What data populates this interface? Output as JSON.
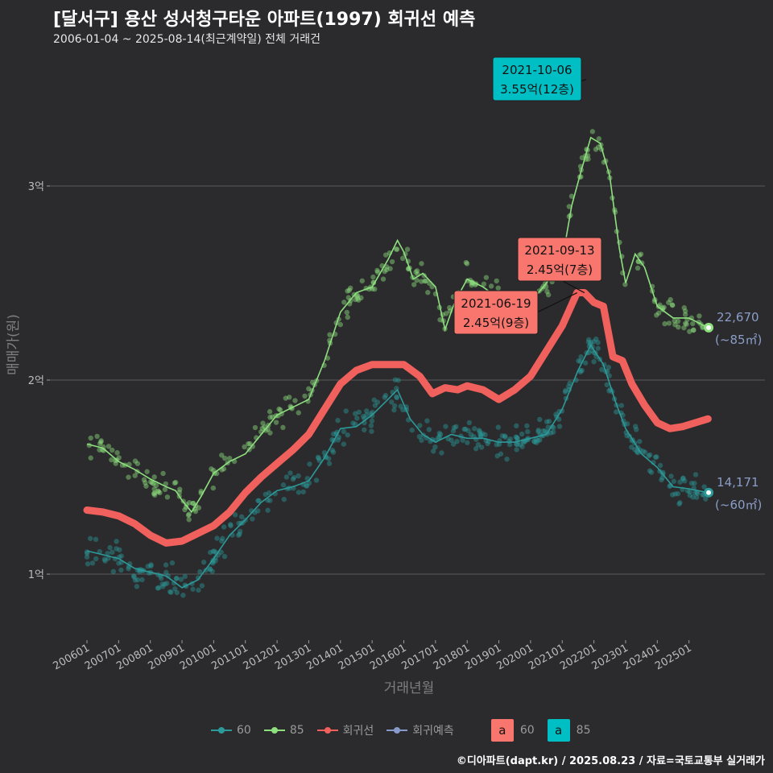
{
  "header": {
    "title": "[달서구] 용산 성서청구타운 아파트(1997) 회귀선 예측",
    "subtitle": "2006-01-04 ~ 2025-08-14(최근계약일) 전체 거래건"
  },
  "caption": "©디아파트(dapt.kr) / 2025.08.23 / 자료=국토교통부 실거래가",
  "colors": {
    "background": "#2b2a2c",
    "s60": "#2c9a9a",
    "s85": "#8ee07f",
    "regression": "#f0605c",
    "forecast": "#8899cc",
    "label60": "#f8766d",
    "label85": "#00bfc4",
    "end_label": "#8a9ec8"
  },
  "legend": {
    "items": [
      {
        "label": "60",
        "icon": "line-point-60-icon"
      },
      {
        "label": "85",
        "icon": "line-point-85-icon"
      },
      {
        "label": "회귀선",
        "icon": "line-point-regression-icon"
      },
      {
        "label": "회귀예측",
        "icon": "line-point-forecast-icon"
      }
    ],
    "label_boxes": [
      {
        "letter": "a",
        "label": "60"
      },
      {
        "letter": "a",
        "label": "85"
      }
    ]
  },
  "chart_data": {
    "type": "line",
    "xlabel": "거래년월",
    "ylabel": "매매가(원)",
    "x_ticks": [
      "200601",
      "200701",
      "200801",
      "200901",
      "201001",
      "201101",
      "201201",
      "201301",
      "201401",
      "201501",
      "201601",
      "201701",
      "201801",
      "201901",
      "202001",
      "202101",
      "202201",
      "202301",
      "202401",
      "202501"
    ],
    "y_ticks": [
      {
        "value": 1,
        "label": "1억"
      },
      {
        "value": 2,
        "label": "2억"
      },
      {
        "value": 3,
        "label": "3억"
      }
    ],
    "xlim": [
      2005.7,
      2026.5
    ],
    "ylim": [
      0.7,
      3.8
    ],
    "grid": true,
    "series": [
      {
        "name": "85",
        "points": [
          [
            2006.0,
            1.67
          ],
          [
            2006.5,
            1.65
          ],
          [
            2007.0,
            1.58
          ],
          [
            2007.5,
            1.54
          ],
          [
            2008.0,
            1.49
          ],
          [
            2008.5,
            1.45
          ],
          [
            2008.8,
            1.43
          ],
          [
            2009.0,
            1.38
          ],
          [
            2009.3,
            1.32
          ],
          [
            2009.6,
            1.4
          ],
          [
            2010.0,
            1.52
          ],
          [
            2010.5,
            1.58
          ],
          [
            2011.0,
            1.62
          ],
          [
            2011.5,
            1.72
          ],
          [
            2012.0,
            1.82
          ],
          [
            2012.5,
            1.86
          ],
          [
            2013.0,
            1.9
          ],
          [
            2013.5,
            2.1
          ],
          [
            2014.0,
            2.35
          ],
          [
            2014.5,
            2.45
          ],
          [
            2015.0,
            2.48
          ],
          [
            2015.5,
            2.62
          ],
          [
            2015.8,
            2.72
          ],
          [
            2016.0,
            2.66
          ],
          [
            2016.3,
            2.52
          ],
          [
            2016.6,
            2.55
          ],
          [
            2017.0,
            2.48
          ],
          [
            2017.3,
            2.26
          ],
          [
            2017.6,
            2.4
          ],
          [
            2018.0,
            2.52
          ],
          [
            2018.5,
            2.48
          ],
          [
            2019.0,
            2.42
          ],
          [
            2019.5,
            2.38
          ],
          [
            2020.0,
            2.4
          ],
          [
            2020.5,
            2.5
          ],
          [
            2021.0,
            2.62
          ],
          [
            2021.3,
            2.9
          ],
          [
            2021.6,
            3.08
          ],
          [
            2021.9,
            3.25
          ],
          [
            2022.2,
            3.22
          ],
          [
            2022.5,
            3.05
          ],
          [
            2022.8,
            2.68
          ],
          [
            2023.0,
            2.5
          ],
          [
            2023.3,
            2.65
          ],
          [
            2023.6,
            2.58
          ],
          [
            2024.0,
            2.38
          ],
          [
            2024.5,
            2.32
          ],
          [
            2025.0,
            2.32
          ],
          [
            2025.6,
            2.27
          ]
        ]
      },
      {
        "name": "60",
        "points": [
          [
            2006.0,
            1.12
          ],
          [
            2006.5,
            1.1
          ],
          [
            2007.0,
            1.08
          ],
          [
            2007.5,
            1.03
          ],
          [
            2008.0,
            1.01
          ],
          [
            2008.5,
            0.99
          ],
          [
            2009.0,
            0.93
          ],
          [
            2009.5,
            0.97
          ],
          [
            2010.0,
            1.08
          ],
          [
            2010.5,
            1.2
          ],
          [
            2011.0,
            1.28
          ],
          [
            2011.5,
            1.37
          ],
          [
            2012.0,
            1.43
          ],
          [
            2012.5,
            1.45
          ],
          [
            2013.0,
            1.48
          ],
          [
            2013.5,
            1.6
          ],
          [
            2014.0,
            1.75
          ],
          [
            2014.5,
            1.76
          ],
          [
            2015.0,
            1.82
          ],
          [
            2015.5,
            1.9
          ],
          [
            2015.8,
            1.95
          ],
          [
            2016.2,
            1.8
          ],
          [
            2016.6,
            1.72
          ],
          [
            2017.0,
            1.68
          ],
          [
            2017.5,
            1.72
          ],
          [
            2018.0,
            1.7
          ],
          [
            2018.5,
            1.7
          ],
          [
            2019.0,
            1.68
          ],
          [
            2019.5,
            1.68
          ],
          [
            2020.0,
            1.7
          ],
          [
            2020.5,
            1.72
          ],
          [
            2021.0,
            1.85
          ],
          [
            2021.5,
            2.05
          ],
          [
            2021.9,
            2.18
          ],
          [
            2022.3,
            2.08
          ],
          [
            2022.7,
            1.88
          ],
          [
            2023.0,
            1.75
          ],
          [
            2023.5,
            1.62
          ],
          [
            2024.0,
            1.55
          ],
          [
            2024.5,
            1.45
          ],
          [
            2025.0,
            1.44
          ],
          [
            2025.6,
            1.42
          ]
        ]
      },
      {
        "name": "회귀선",
        "points": [
          [
            2006.0,
            1.33
          ],
          [
            2006.5,
            1.32
          ],
          [
            2007.0,
            1.3
          ],
          [
            2007.5,
            1.26
          ],
          [
            2008.0,
            1.2
          ],
          [
            2008.5,
            1.16
          ],
          [
            2009.0,
            1.17
          ],
          [
            2009.5,
            1.21
          ],
          [
            2010.0,
            1.25
          ],
          [
            2010.5,
            1.32
          ],
          [
            2011.0,
            1.42
          ],
          [
            2011.5,
            1.5
          ],
          [
            2012.0,
            1.57
          ],
          [
            2012.5,
            1.64
          ],
          [
            2013.0,
            1.72
          ],
          [
            2013.5,
            1.85
          ],
          [
            2014.0,
            1.98
          ],
          [
            2014.5,
            2.05
          ],
          [
            2015.0,
            2.08
          ],
          [
            2015.5,
            2.08
          ],
          [
            2016.0,
            2.08
          ],
          [
            2016.5,
            2.02
          ],
          [
            2016.9,
            1.93
          ],
          [
            2017.3,
            1.96
          ],
          [
            2017.7,
            1.95
          ],
          [
            2018.0,
            1.97
          ],
          [
            2018.5,
            1.95
          ],
          [
            2019.0,
            1.9
          ],
          [
            2019.5,
            1.95
          ],
          [
            2020.0,
            2.02
          ],
          [
            2020.5,
            2.15
          ],
          [
            2021.0,
            2.28
          ],
          [
            2021.47,
            2.45
          ],
          [
            2021.7,
            2.45
          ],
          [
            2022.0,
            2.4
          ],
          [
            2022.3,
            2.38
          ],
          [
            2022.6,
            2.12
          ],
          [
            2022.9,
            2.1
          ],
          [
            2023.2,
            1.98
          ],
          [
            2023.6,
            1.87
          ],
          [
            2024.0,
            1.78
          ],
          [
            2024.4,
            1.75
          ],
          [
            2024.8,
            1.76
          ],
          [
            2025.2,
            1.78
          ],
          [
            2025.6,
            1.8
          ]
        ]
      }
    ],
    "end_labels": [
      {
        "value": "22,670",
        "area": "(~85㎡)",
        "x": 2025.62,
        "y": 2.27
      },
      {
        "value": "14,171",
        "area": "(~60㎡)",
        "x": 2025.62,
        "y": 1.42
      }
    ],
    "annotations": [
      {
        "date": "2021-10-06",
        "price": "3.55억(12층)",
        "x": 2021.76,
        "y": 3.55,
        "group": "85"
      },
      {
        "date": "2021-09-13",
        "price": "2.45억(7층)",
        "x": 2021.7,
        "y": 2.45,
        "group": "60"
      },
      {
        "date": "2021-06-19",
        "price": "2.45억(9층)",
        "x": 2021.47,
        "y": 2.45,
        "group": "60"
      }
    ]
  }
}
